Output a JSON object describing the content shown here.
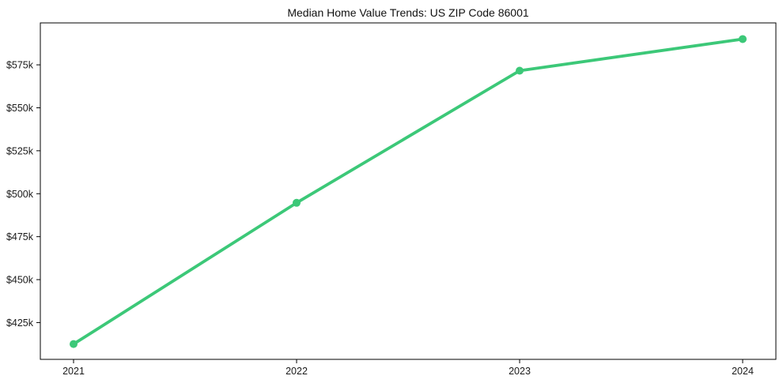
{
  "chart_data": {
    "type": "line",
    "title": "Median Home Value Trends: US ZIP Code 86001",
    "categories": [
      "2021",
      "2022",
      "2023",
      "2024"
    ],
    "series": [
      {
        "name": "Median Home Value",
        "values": [
          412500,
          494700,
          571600,
          590000
        ]
      }
    ],
    "yticks": [
      {
        "value": 425000,
        "label": "$425k"
      },
      {
        "value": 450000,
        "label": "$450k"
      },
      {
        "value": 475000,
        "label": "$475k"
      },
      {
        "value": 500000,
        "label": "$500k"
      },
      {
        "value": 525000,
        "label": "$525k"
      },
      {
        "value": 550000,
        "label": "$550k"
      },
      {
        "value": 575000,
        "label": "$575k"
      }
    ],
    "ylim": [
      403600,
      599400
    ],
    "xlabel": "",
    "ylabel": "",
    "grid": false,
    "legend": false,
    "colors": {
      "line": "#3cc878",
      "marker": "#3cc878",
      "spine": "#000000",
      "tick_text": "#1a1a1a"
    }
  }
}
